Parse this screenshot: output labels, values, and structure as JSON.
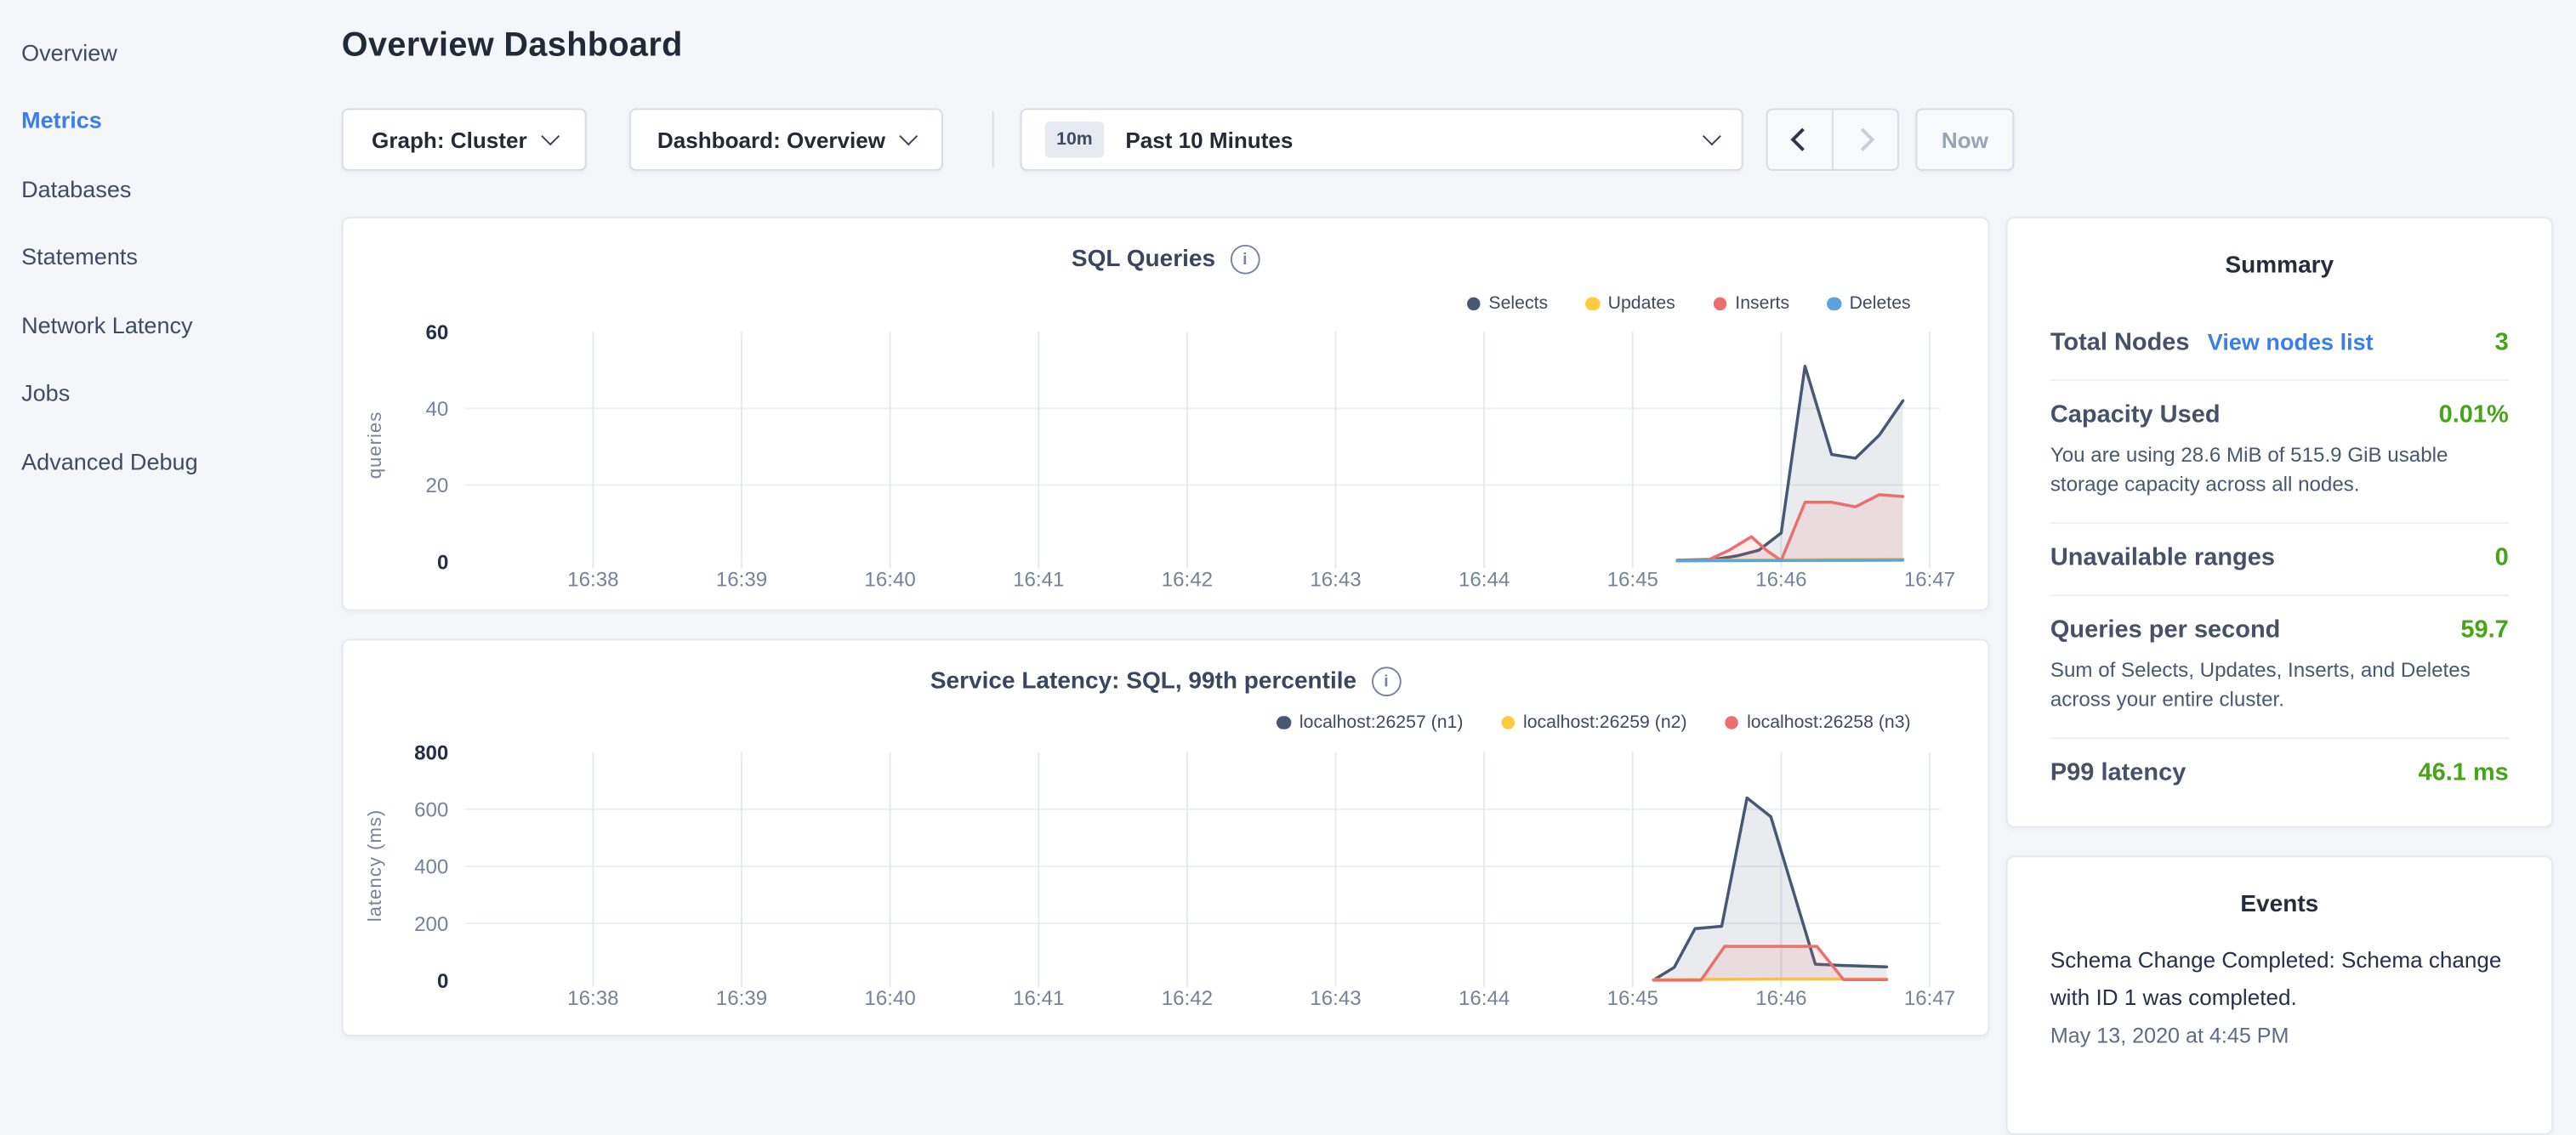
{
  "header": {
    "title": "Overview Dashboard"
  },
  "sidebar": {
    "items": [
      {
        "label": "Overview",
        "active": false
      },
      {
        "label": "Metrics",
        "active": true
      },
      {
        "label": "Databases",
        "active": false
      },
      {
        "label": "Statements",
        "active": false
      },
      {
        "label": "Network Latency",
        "active": false
      },
      {
        "label": "Jobs",
        "active": false
      },
      {
        "label": "Advanced Debug",
        "active": false
      }
    ]
  },
  "toolbar": {
    "graph_label": "Graph: Cluster",
    "dashboard_label": "Dashboard: Overview",
    "time": {
      "badge": "10m",
      "label": "Past 10 Minutes"
    },
    "now_label": "Now"
  },
  "summary": {
    "title": "Summary",
    "rows": [
      {
        "label": "Total Nodes",
        "link": "View nodes list",
        "value": "3"
      },
      {
        "label": "Capacity Used",
        "value": "0.01%",
        "description": "You are using 28.6 MiB of 515.9 GiB usable storage capacity across all nodes."
      },
      {
        "label": "Unavailable ranges",
        "value": "0"
      },
      {
        "label": "Queries per second",
        "value": "59.7",
        "description": "Sum of Selects, Updates, Inserts, and Deletes across your entire cluster."
      },
      {
        "label": "P99 latency",
        "value": "46.1 ms"
      }
    ]
  },
  "events": {
    "title": "Events",
    "items": [
      {
        "message": "Schema Change Completed: Schema change with ID 1 was completed.",
        "timestamp": "May 13, 2020 at 4:45 PM"
      }
    ]
  },
  "colors": {
    "accent_blue": "#3a7ded",
    "status_green": "#46a417",
    "grid_vertical": "#e4e9f0",
    "grid_horizontal": "#eceff4",
    "tick_gray": "#74839b",
    "tick_dark": "#232e48"
  },
  "chart_data": [
    {
      "type": "line",
      "title": "SQL Queries",
      "ylabel": "queries",
      "ylim": [
        0,
        60
      ],
      "y_ticks": [
        0,
        20,
        40,
        60
      ],
      "x_ticks": [
        "16:38",
        "16:39",
        "16:40",
        "16:41",
        "16:42",
        "16:43",
        "16:44",
        "16:45",
        "16:46",
        "16:47"
      ],
      "grid": true,
      "legend_position": "top-right",
      "series": [
        {
          "name": "Selects",
          "color": "#475872",
          "points": [
            [
              7.3,
              0.4
            ],
            [
              7.55,
              0.6
            ],
            [
              7.7,
              1.5
            ],
            [
              7.85,
              3
            ],
            [
              8.0,
              7.5
            ],
            [
              8.16,
              51
            ],
            [
              8.34,
              28
            ],
            [
              8.5,
              27
            ],
            [
              8.66,
              33
            ],
            [
              8.82,
              42
            ]
          ]
        },
        {
          "name": "Updates",
          "color": "#fdca40",
          "points": [
            [
              7.3,
              0.3
            ],
            [
              8.0,
              0.5
            ],
            [
              8.82,
              0.7
            ]
          ]
        },
        {
          "name": "Inserts",
          "color": "#ed6e6e",
          "points": [
            [
              7.3,
              0.2
            ],
            [
              7.5,
              0.3
            ],
            [
              7.65,
              3
            ],
            [
              7.8,
              6.5
            ],
            [
              7.9,
              3
            ],
            [
              8.0,
              0.3
            ],
            [
              8.16,
              15.5
            ],
            [
              8.34,
              15.5
            ],
            [
              8.5,
              14.3
            ],
            [
              8.66,
              17.5
            ],
            [
              8.82,
              17
            ]
          ]
        },
        {
          "name": "Deletes",
          "color": "#5ca2dc",
          "points": [
            [
              7.3,
              0.2
            ],
            [
              8.0,
              0.3
            ],
            [
              8.82,
              0.4
            ]
          ]
        }
      ]
    },
    {
      "type": "line",
      "title": "Service Latency: SQL, 99th percentile",
      "ylabel": "latency (ms)",
      "ylim": [
        0,
        800
      ],
      "y_ticks": [
        0,
        200,
        400,
        600,
        800
      ],
      "x_ticks": [
        "16:38",
        "16:39",
        "16:40",
        "16:41",
        "16:42",
        "16:43",
        "16:44",
        "16:45",
        "16:46",
        "16:47"
      ],
      "grid": true,
      "legend_position": "top-right",
      "series": [
        {
          "name": "localhost:26257 (n1)",
          "color": "#475872",
          "points": [
            [
              7.14,
              2
            ],
            [
              7.28,
              46
            ],
            [
              7.42,
              182
            ],
            [
              7.6,
              190
            ],
            [
              7.77,
              640
            ],
            [
              7.93,
              574
            ],
            [
              8.23,
              57
            ],
            [
              8.4,
              53
            ],
            [
              8.71,
              48
            ]
          ]
        },
        {
          "name": "localhost:26259 (n2)",
          "color": "#fdca40",
          "points": [
            [
              7.14,
              3
            ],
            [
              8.0,
              5
            ],
            [
              8.71,
              5
            ]
          ]
        },
        {
          "name": "localhost:26258 (n3)",
          "color": "#ed6e6e",
          "points": [
            [
              7.14,
              1
            ],
            [
              7.46,
              1
            ],
            [
              7.62,
              120
            ],
            [
              8.24,
              120
            ],
            [
              8.42,
              3
            ],
            [
              8.71,
              3
            ]
          ]
        }
      ]
    }
  ]
}
